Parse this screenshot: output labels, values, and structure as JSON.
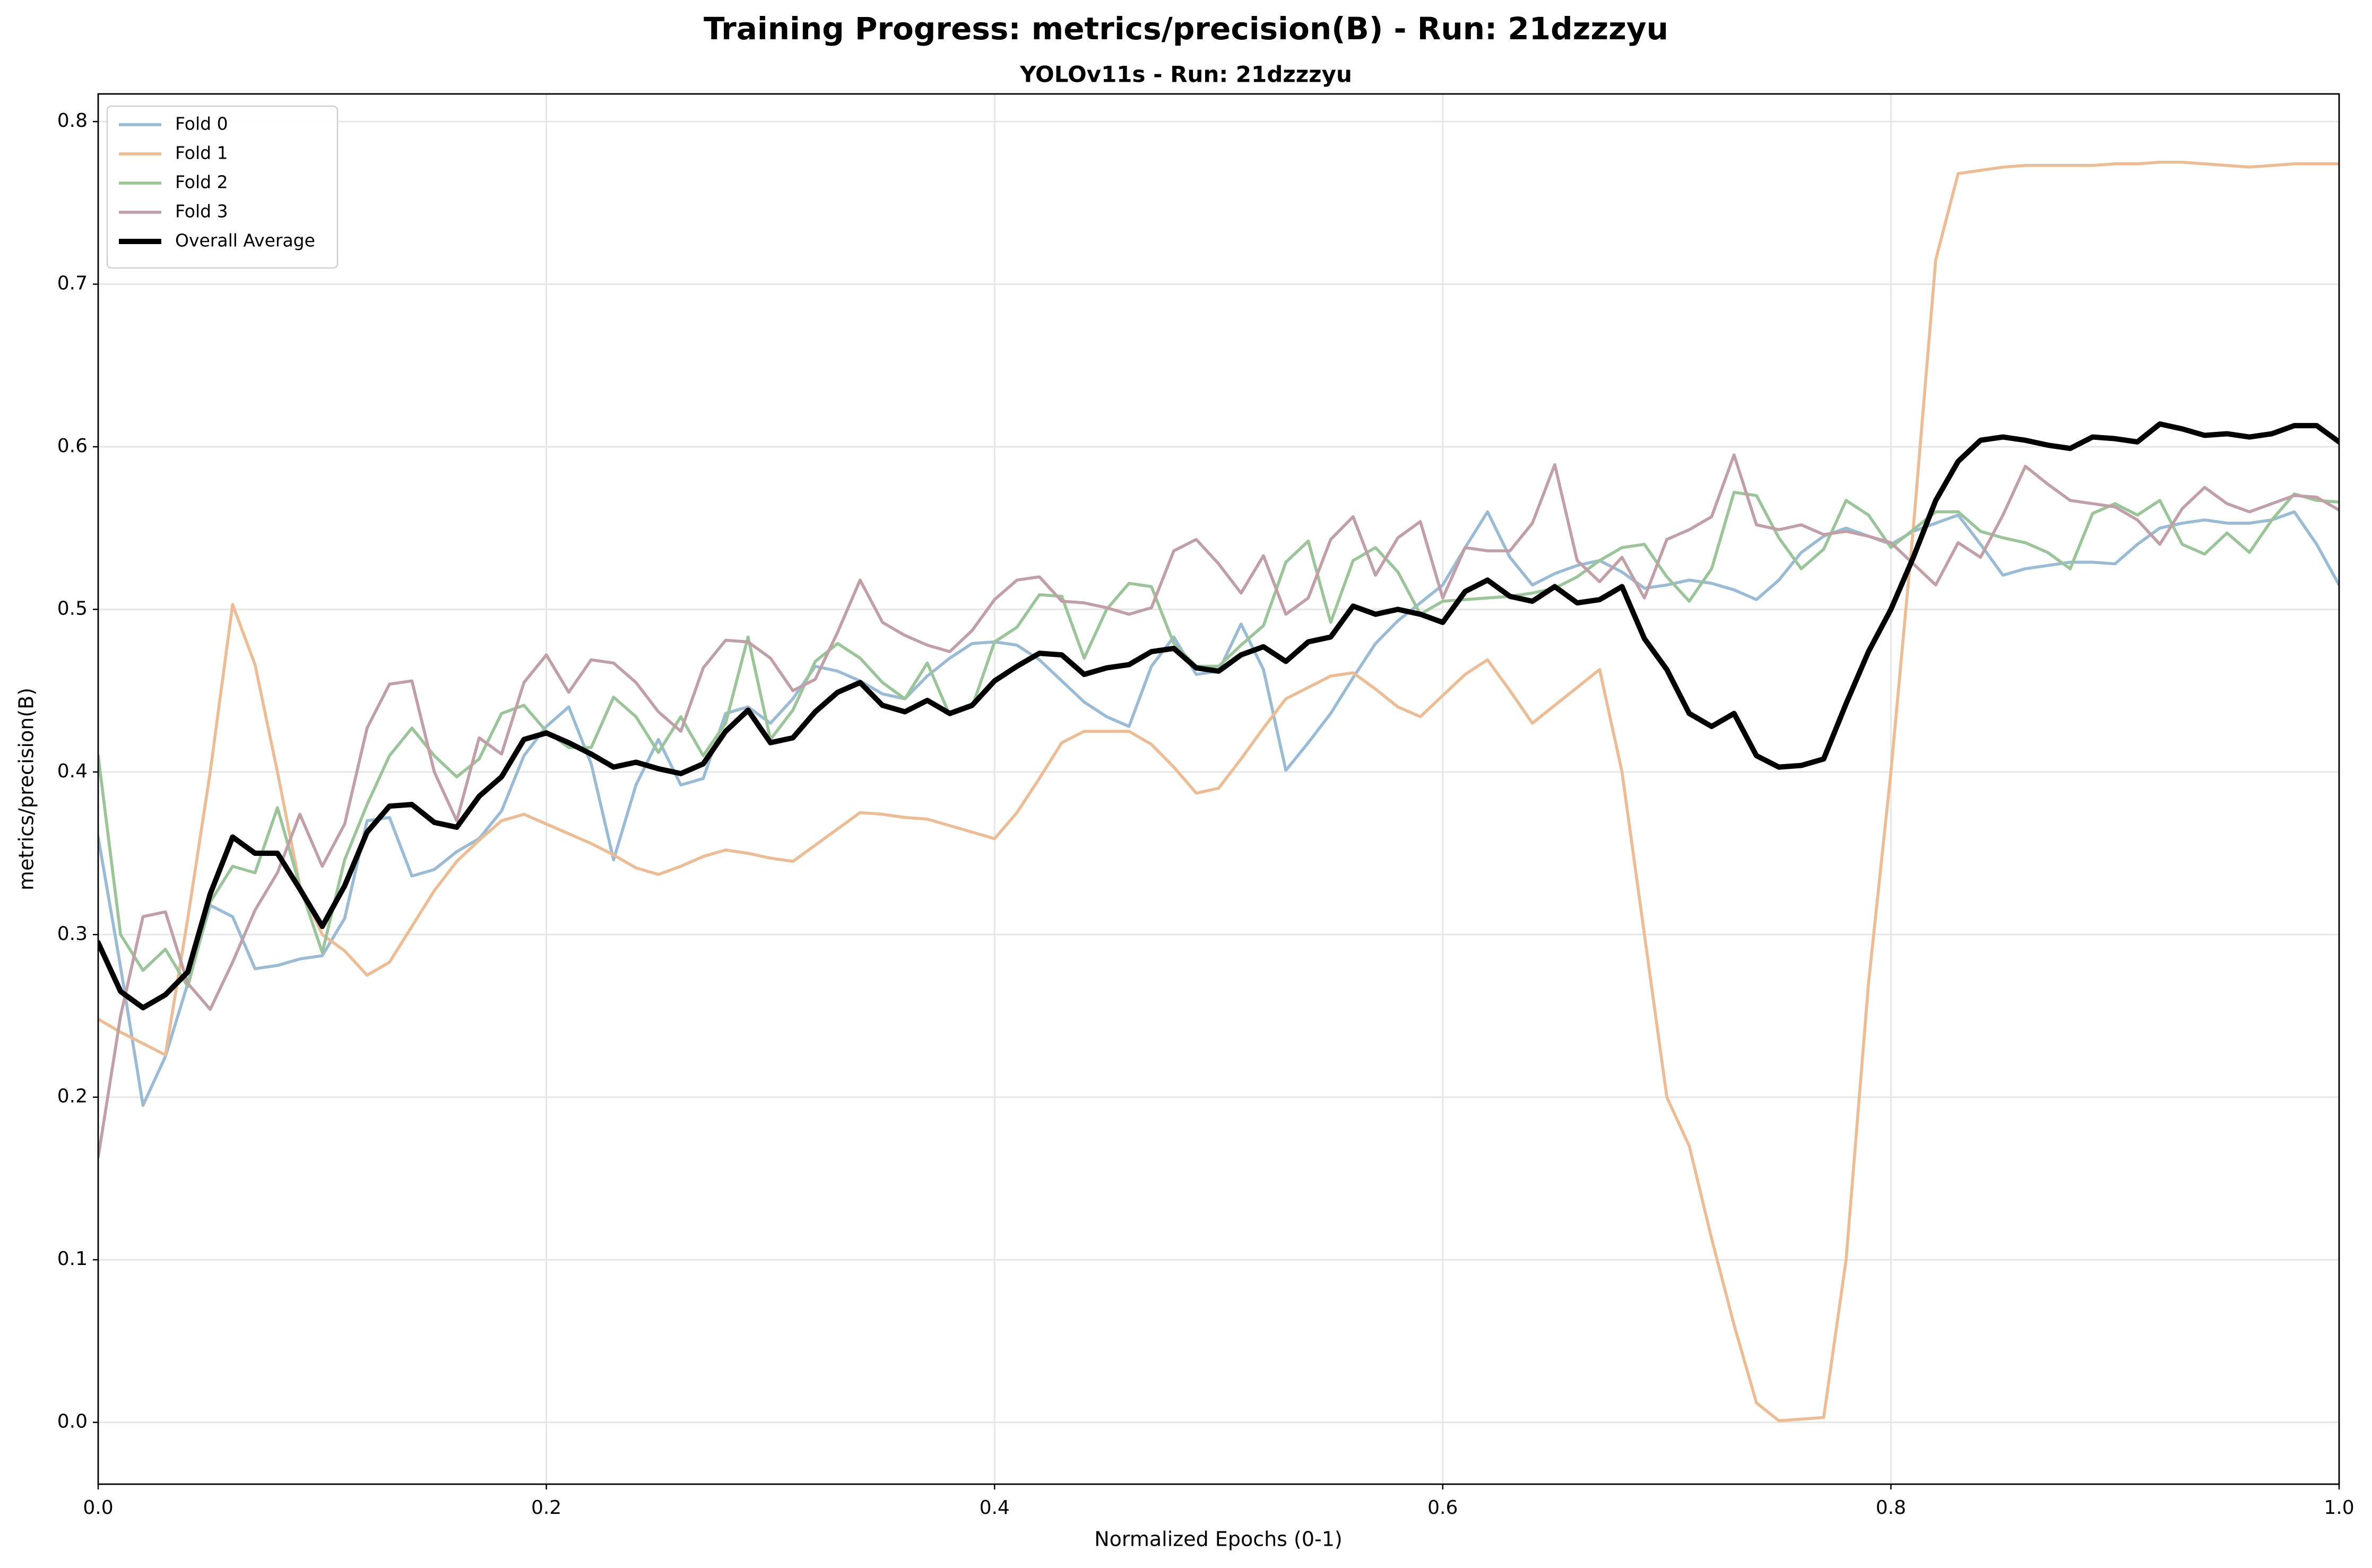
{
  "chart_data": {
    "type": "line",
    "title": "Training Progress: metrics/precision(B) - Run: 21dzzzyu",
    "subtitle": "YOLOv11s - Run: 21dzzzyu",
    "x_label": "Normalized Epochs (0-1)",
    "y_label": "metrics/precision(B)",
    "grid": true,
    "legend": "upper left",
    "xlim": [
      0,
      1
    ],
    "ylim": [
      -0.038,
      0.817
    ],
    "xticks": [
      {
        "value": 0,
        "label": "0.0"
      },
      0.2,
      0.4,
      0.6,
      0.8,
      {
        "value": 1,
        "label": "1.0"
      }
    ],
    "yticks": [
      {
        "value": 0,
        "label": "0.0"
      },
      0.1,
      0.2,
      0.3,
      0.4,
      0.5,
      0.6,
      0.7,
      0.8
    ],
    "x": [
      0,
      0.01,
      0.02,
      0.03,
      0.04,
      0.05,
      0.06,
      0.07,
      0.08,
      0.09,
      0.1,
      0.11,
      0.12,
      0.13,
      0.14,
      0.15,
      0.16,
      0.17,
      0.18,
      0.19,
      0.2,
      0.21,
      0.22,
      0.23,
      0.24,
      0.25,
      0.26,
      0.27,
      0.28,
      0.29,
      0.3,
      0.31,
      0.32,
      0.33,
      0.34,
      0.35,
      0.36,
      0.37,
      0.38,
      0.39,
      0.4,
      0.41,
      0.42,
      0.43,
      0.44,
      0.45,
      0.46,
      0.47,
      0.48,
      0.49,
      0.5,
      0.51,
      0.52,
      0.53,
      0.54,
      0.55,
      0.56,
      0.57,
      0.58,
      0.59,
      0.6,
      0.61,
      0.62,
      0.63,
      0.64,
      0.65,
      0.66,
      0.67,
      0.68,
      0.69,
      0.7,
      0.71,
      0.72,
      0.73,
      0.74,
      0.75,
      0.76,
      0.77,
      0.78,
      0.79,
      0.8,
      0.81,
      0.82,
      0.83,
      0.84,
      0.85,
      0.86,
      0.87,
      0.88,
      0.89,
      0.9,
      0.91,
      0.92,
      0.93,
      0.94,
      0.95,
      0.96,
      0.97,
      0.98,
      0.99,
      1
    ],
    "series": [
      {
        "name": "Fold 0",
        "color": "#9bbad3",
        "width": 2,
        "values": [
          0.36,
          0.28,
          0.195,
          0.225,
          0.27,
          0.318,
          0.311,
          0.279,
          0.281,
          0.285,
          0.287,
          0.31,
          0.37,
          0.372,
          0.336,
          0.34,
          0.351,
          0.359,
          0.376,
          0.41,
          0.428,
          0.44,
          0.405,
          0.346,
          0.392,
          0.42,
          0.392,
          0.396,
          0.436,
          0.44,
          0.43,
          0.445,
          0.465,
          0.462,
          0.456,
          0.448,
          0.445,
          0.459,
          0.47,
          0.479,
          0.48,
          0.478,
          0.469,
          0.456,
          0.443,
          0.434,
          0.428,
          0.465,
          0.483,
          0.46,
          0.462,
          0.491,
          0.463,
          0.401,
          0.418,
          0.436,
          0.458,
          0.479,
          0.493,
          0.504,
          0.515,
          0.538,
          0.56,
          0.532,
          0.515,
          0.522,
          0.527,
          0.53,
          0.523,
          0.513,
          0.515,
          0.518,
          0.516,
          0.512,
          0.506,
          0.518,
          0.535,
          0.545,
          0.55,
          0.545,
          0.54,
          0.548,
          0.553,
          0.558,
          0.54,
          0.521,
          0.525,
          0.527,
          0.529,
          0.529,
          0.528,
          0.54,
          0.55,
          0.553,
          0.555,
          0.553,
          0.553,
          0.555,
          0.56,
          0.54,
          0.515
        ]
      },
      {
        "name": "Fold 1",
        "color": "#ebbd96",
        "width": 2,
        "values": [
          0.248,
          0.24,
          0.233,
          0.226,
          0.31,
          0.4,
          0.503,
          0.466,
          0.4,
          0.33,
          0.3,
          0.29,
          0.275,
          0.283,
          0.305,
          0.327,
          0.345,
          0.358,
          0.37,
          0.374,
          0.368,
          0.362,
          0.356,
          0.349,
          0.341,
          0.337,
          0.342,
          0.348,
          0.352,
          0.35,
          0.347,
          0.345,
          0.355,
          0.365,
          0.375,
          0.374,
          0.372,
          0.371,
          0.367,
          0.363,
          0.359,
          0.375,
          0.396,
          0.418,
          0.425,
          0.425,
          0.425,
          0.417,
          0.403,
          0.387,
          0.39,
          0.408,
          0.427,
          0.445,
          0.452,
          0.459,
          0.461,
          0.451,
          0.44,
          0.434,
          0.447,
          0.46,
          0.469,
          0.45,
          0.43,
          0.441,
          0.452,
          0.463,
          0.4,
          0.3,
          0.2,
          0.17,
          0.113,
          0.06,
          0.012,
          0.001,
          0.002,
          0.003,
          0.1,
          0.27,
          0.4,
          0.55,
          0.715,
          0.768,
          0.77,
          0.772,
          0.773,
          0.773,
          0.773,
          0.773,
          0.774,
          0.774,
          0.775,
          0.775,
          0.774,
          0.773,
          0.772,
          0.773,
          0.774,
          0.774,
          0.774
        ]
      },
      {
        "name": "Fold 2",
        "color": "#9cc49a",
        "width": 2,
        "values": [
          0.41,
          0.3,
          0.278,
          0.291,
          0.268,
          0.32,
          0.342,
          0.338,
          0.378,
          0.33,
          0.289,
          0.346,
          0.38,
          0.41,
          0.427,
          0.41,
          0.397,
          0.408,
          0.436,
          0.441,
          0.425,
          0.415,
          0.415,
          0.446,
          0.434,
          0.412,
          0.434,
          0.41,
          0.43,
          0.483,
          0.42,
          0.438,
          0.468,
          0.479,
          0.47,
          0.455,
          0.445,
          0.467,
          0.435,
          0.44,
          0.48,
          0.489,
          0.509,
          0.508,
          0.47,
          0.5,
          0.516,
          0.514,
          0.479,
          0.465,
          0.465,
          0.478,
          0.49,
          0.529,
          0.542,
          0.492,
          0.53,
          0.538,
          0.523,
          0.497,
          0.505,
          0.506,
          0.507,
          0.508,
          0.51,
          0.513,
          0.52,
          0.53,
          0.538,
          0.54,
          0.52,
          0.505,
          0.525,
          0.572,
          0.57,
          0.544,
          0.525,
          0.537,
          0.567,
          0.558,
          0.538,
          0.549,
          0.56,
          0.56,
          0.548,
          0.544,
          0.541,
          0.535,
          0.525,
          0.559,
          0.565,
          0.558,
          0.567,
          0.54,
          0.534,
          0.547,
          0.535,
          0.555,
          0.571,
          0.567,
          0.566
        ]
      },
      {
        "name": "Fold 3",
        "color": "#c0a0a6",
        "width": 2,
        "values": [
          0.163,
          0.25,
          0.311,
          0.314,
          0.27,
          0.254,
          0.283,
          0.315,
          0.338,
          0.374,
          0.342,
          0.368,
          0.427,
          0.454,
          0.456,
          0.4,
          0.37,
          0.421,
          0.411,
          0.455,
          0.472,
          0.449,
          0.469,
          0.467,
          0.455,
          0.437,
          0.425,
          0.464,
          0.481,
          0.48,
          0.47,
          0.45,
          0.457,
          0.486,
          0.518,
          0.492,
          0.484,
          0.478,
          0.474,
          0.487,
          0.506,
          0.518,
          0.52,
          0.505,
          0.504,
          0.501,
          0.497,
          0.501,
          0.536,
          0.543,
          0.528,
          0.51,
          0.533,
          0.497,
          0.507,
          0.543,
          0.557,
          0.521,
          0.544,
          0.554,
          0.507,
          0.538,
          0.536,
          0.536,
          0.553,
          0.589,
          0.53,
          0.517,
          0.532,
          0.507,
          0.543,
          0.549,
          0.557,
          0.595,
          0.552,
          0.549,
          0.552,
          0.546,
          0.548,
          0.545,
          0.541,
          0.528,
          0.515,
          0.541,
          0.532,
          0.558,
          0.588,
          0.577,
          0.567,
          0.565,
          0.563,
          0.555,
          0.54,
          0.562,
          0.575,
          0.565,
          0.56,
          0.565,
          0.57,
          0.569,
          0.561
        ]
      },
      {
        "name": "Overall Average",
        "color": "#000000",
        "width": 3.5,
        "values": [
          0.295,
          0.265,
          0.255,
          0.263,
          0.277,
          0.325,
          0.36,
          0.35,
          0.35,
          0.328,
          0.305,
          0.33,
          0.363,
          0.379,
          0.38,
          0.369,
          0.366,
          0.385,
          0.397,
          0.42,
          0.424,
          0.418,
          0.411,
          0.403,
          0.406,
          0.402,
          0.399,
          0.405,
          0.425,
          0.438,
          0.418,
          0.421,
          0.437,
          0.449,
          0.455,
          0.441,
          0.437,
          0.444,
          0.436,
          0.441,
          0.456,
          0.465,
          0.473,
          0.472,
          0.46,
          0.464,
          0.466,
          0.474,
          0.476,
          0.464,
          0.462,
          0.472,
          0.477,
          0.468,
          0.48,
          0.483,
          0.502,
          0.497,
          0.5,
          0.497,
          0.492,
          0.511,
          0.518,
          0.508,
          0.505,
          0.514,
          0.504,
          0.506,
          0.514,
          0.482,
          0.463,
          0.436,
          0.428,
          0.436,
          0.41,
          0.403,
          0.404,
          0.408,
          0.442,
          0.474,
          0.5,
          0.532,
          0.567,
          0.591,
          0.604,
          0.606,
          0.604,
          0.601,
          0.599,
          0.606,
          0.605,
          0.603,
          0.614,
          0.611,
          0.607,
          0.608,
          0.606,
          0.608,
          0.613,
          0.613,
          0.603
        ]
      }
    ]
  }
}
